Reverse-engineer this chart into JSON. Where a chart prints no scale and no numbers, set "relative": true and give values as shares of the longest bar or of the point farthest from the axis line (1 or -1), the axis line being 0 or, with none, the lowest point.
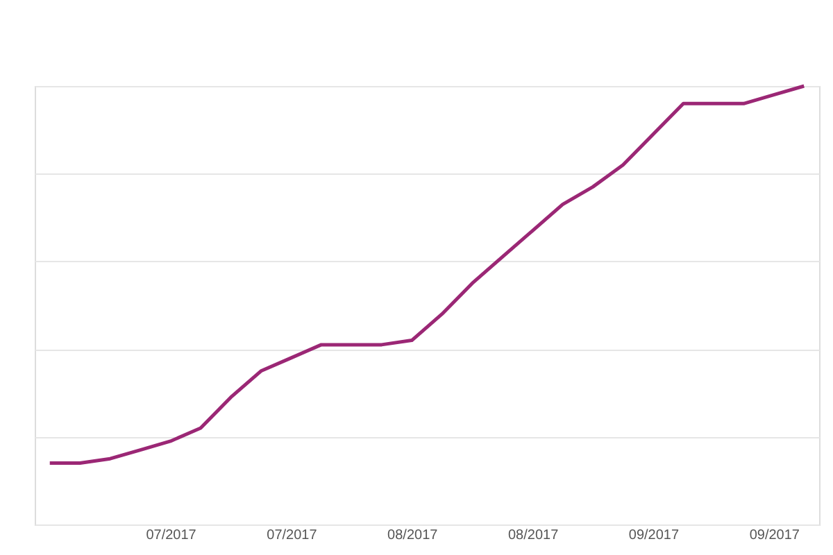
{
  "chart_data": {
    "type": "line",
    "relative": true,
    "grid": "y",
    "legend": false,
    "marker": "none",
    "line_style": "solid",
    "categories": [
      null,
      null,
      null,
      null,
      "07/2017",
      null,
      null,
      null,
      "07/2017",
      null,
      null,
      null,
      "08/2017",
      null,
      null,
      null,
      "08/2017",
      null,
      null,
      null,
      "09/2017",
      null,
      null,
      null,
      "09/2017",
      null
    ],
    "series": [
      {
        "color": "#9b2775",
        "values": [
          0.14,
          0.14,
          0.15,
          0.17,
          0.19,
          0.22,
          0.29,
          0.35,
          0.38,
          0.41,
          0.41,
          0.41,
          0.42,
          0.48,
          0.55,
          0.61,
          0.67,
          0.73,
          0.77,
          0.82,
          0.89,
          0.96,
          0.96,
          0.96,
          0.98,
          1.0
        ]
      }
    ]
  }
}
